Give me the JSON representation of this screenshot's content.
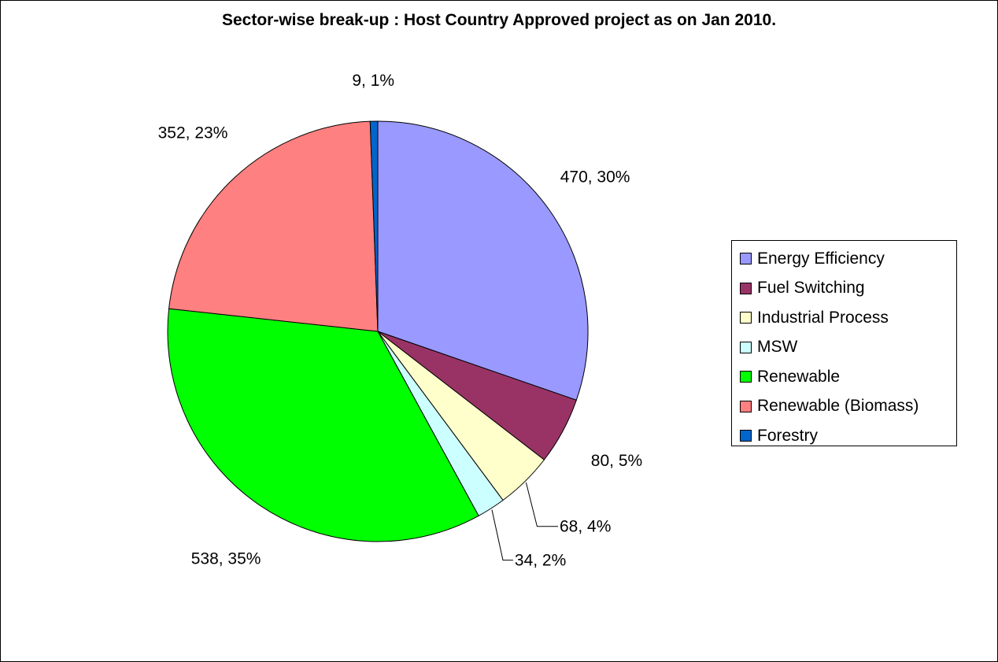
{
  "chart_data": {
    "type": "pie",
    "title": "Sector-wise break-up : Host Country Approved project as on Jan 2010.",
    "legend_position": "right",
    "slices": [
      {
        "name": "Energy Efficiency",
        "value": 470,
        "label": "470, 30%",
        "color": "#9999ff"
      },
      {
        "name": "Fuel Switching",
        "value": 80,
        "label": "80, 5%",
        "color": "#993366"
      },
      {
        "name": "Industrial Process",
        "value": 68,
        "label": "68, 4%",
        "color": "#ffffcc"
      },
      {
        "name": "MSW",
        "value": 34,
        "label": "34, 2%",
        "color": "#ccffff"
      },
      {
        "name": "Renewable",
        "value": 538,
        "label": "538, 35%",
        "color": "#00ff00"
      },
      {
        "name": "Renewable (Biomass)",
        "value": 352,
        "label": "352, 23%",
        "color": "#ff8080"
      },
      {
        "name": "Forestry",
        "value": 9,
        "label": "9, 1%",
        "color": "#0066cc"
      }
    ]
  }
}
